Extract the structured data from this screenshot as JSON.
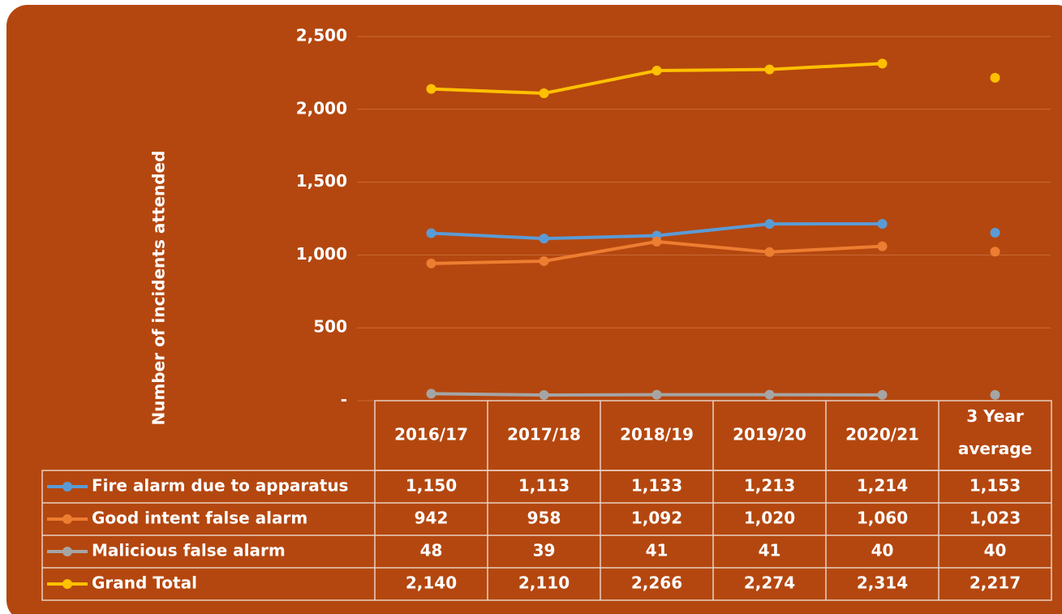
{
  "chart_data": {
    "type": "line",
    "y_label": "Number of incidents attended",
    "categories": [
      "2016/17",
      "2017/18",
      "2018/19",
      "2019/20",
      "2020/21",
      "3 Year average"
    ],
    "series": [
      {
        "name": "Fire alarm due to apparatus",
        "color": "#5b9bd5",
        "values": [
          1150,
          1113,
          1133,
          1213,
          1214,
          1153
        ],
        "value_labels": [
          "1,150",
          "1,113",
          "1,133",
          "1,213",
          "1,214",
          "1,153"
        ]
      },
      {
        "name": "Good intent false alarm",
        "color": "#ed7d31",
        "values": [
          942,
          958,
          1092,
          1020,
          1060,
          1023
        ],
        "value_labels": [
          "942",
          "958",
          "1,092",
          "1,020",
          "1,060",
          "1,023"
        ]
      },
      {
        "name": "Malicious false alarm",
        "color": "#a5a5a5",
        "values": [
          48,
          39,
          41,
          41,
          40,
          40
        ]
      },
      {
        "name": "Grand Total",
        "color": "#ffc000",
        "values": [
          2140,
          2110,
          2266,
          2274,
          2314,
          2217
        ],
        "value_labels": [
          "2,140",
          "2,110",
          "2,266",
          "2,274",
          "2,314",
          "2,217"
        ]
      }
    ],
    "ylim": [
      0,
      2500
    ],
    "yticks": [
      {
        "value": 0,
        "label": "-"
      },
      500,
      {
        "value": 1000,
        "label": "1,000"
      },
      {
        "value": 1500,
        "label": "1,500"
      },
      {
        "value": 2000,
        "label": "2,000"
      },
      {
        "value": 2500,
        "label": "2,500"
      }
    ],
    "grid": true
  }
}
